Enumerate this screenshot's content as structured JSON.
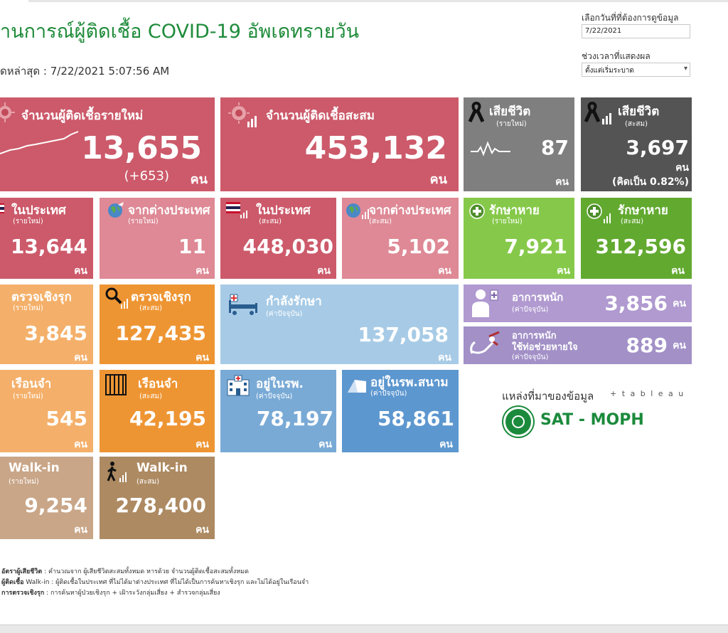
{
  "header": {
    "title": "านการณ์ผู้ติดเชื้อ COVID-19 อัพเดทรายวัน",
    "updated": "ดหล่าสุด : 7/22/2021 5:07:56 AM"
  },
  "controls": {
    "date_label": "เลือกวันที่ที่ต้องการดูข้อมูล",
    "date_value": "7/22/2021",
    "period_label": "ช่วงเวลาที่แสดงผล",
    "period_value": "ตั้งแต่เริ่มระบาด"
  },
  "tiles": {
    "new_cases": {
      "title": "จำนวนผู้ติดเชื้อรายใหม่",
      "value": "13,655",
      "delta": "(+653)",
      "unit": "คน"
    },
    "total_cases": {
      "title": "จำนวนผู้ติดเชื้อสะสม",
      "value": "453,132",
      "unit": "คน"
    },
    "deaths_new": {
      "title": "เสียชีวิต",
      "sub": "(รายใหม่)",
      "value": "87",
      "unit": "คน"
    },
    "deaths_total": {
      "title": "เสียชีวิต",
      "sub": "(สะสม)",
      "value": "3,697",
      "unit": "คน",
      "rate": "(คิดเป็น 0.82%)"
    },
    "domestic_new": {
      "title": "ในประเทศ",
      "sub": "(รายใหม่)",
      "value": "13,644",
      "unit": "คน"
    },
    "abroad_new": {
      "title": "จากต่างประเทศ",
      "sub": "(รายใหม่)",
      "value": "11",
      "unit": "คน"
    },
    "domestic_total": {
      "title": "ในประเทศ",
      "sub": "(สะสม)",
      "value": "448,030",
      "unit": "คน"
    },
    "abroad_total": {
      "title": "จากต่างประเทศ",
      "sub": "(สะสม)",
      "value": "5,102",
      "unit": "คน"
    },
    "recovered_new": {
      "title": "รักษาหาย",
      "sub": "(รายใหม่)",
      "value": "7,921",
      "unit": "คน"
    },
    "recovered_total": {
      "title": "รักษาหาย",
      "sub": "(สะสม)",
      "value": "312,596",
      "unit": "คน"
    },
    "active_test_new": {
      "title": "ตรวจเชิงรุก",
      "sub": "(รายใหม่)",
      "value": "3,845",
      "unit": "คน"
    },
    "active_test_total": {
      "title": "ตรวจเชิงรุก",
      "sub": "(สะสม)",
      "value": "127,435",
      "unit": "คน"
    },
    "treating": {
      "title": "กำลังรักษา",
      "sub": "(ค่าปัจจุบัน)",
      "value": "137,058",
      "unit": "คน"
    },
    "severe": {
      "title": "อาการหนัก",
      "sub": "(ค่าปัจจุบัน)",
      "value": "3,856",
      "unit": "คน"
    },
    "ventilator": {
      "title": "อาการหนัก",
      "title2": "ใช้ท่อช่วยหายใจ",
      "sub": "(ค่าปัจจุบัน)",
      "value": "889",
      "unit": "คน"
    },
    "prison_new": {
      "title": "เรือนจำ",
      "sub": "(รายใหม่)",
      "value": "545",
      "unit": "คน"
    },
    "prison_total": {
      "title": "เรือนจำ",
      "sub": "(สะสม)",
      "value": "42,195",
      "unit": "คน"
    },
    "hospital": {
      "title": "อยู่ในรพ.",
      "sub": "(ค่าปัจจุบัน)",
      "value": "78,197",
      "unit": "คน"
    },
    "field_hospital": {
      "title": "อยู่ในรพ.สนาม",
      "sub": "(ค่าปัจจุบัน)",
      "value": "58,861",
      "unit": "คน"
    },
    "walkin_new": {
      "title": "Walk-in",
      "sub": "(รายใหม่)",
      "value": "9,254",
      "unit": "คน"
    },
    "walkin_total": {
      "title": "Walk-in",
      "sub": "(สะสม)",
      "value": "278,400",
      "unit": "คน"
    }
  },
  "source": {
    "label": "แหล่งที่มาของข้อมูล",
    "tableau": "+ t a b l e a u",
    "org": "SAT - MOPH"
  },
  "notes": [
    {
      "bold": "อัตราผู้เสียชีวิต",
      "text": " : คำนวณจาก ผู้เสียชีวิตสะสมทั้งหมด หารด้วย จำนวนผู้ติดเชื้อสะสมทั้งหมด"
    },
    {
      "bold": "ผู้ติดเชื้อ",
      "text": " Walk-in : ผู้ติดเชื้อในประเทศ ที่ไม่ได้มาต่างประเทศ ที่ไม่ได้เป็นการค้นหาเชิงรุก และไม่ได้อยู่ในเรือนจำ"
    },
    {
      "bold": "การตรวจเชิงรุก",
      "text": " : การค้นหาผู้ป่วยเชิงรุก + เฝ้าระวังกลุ่มเสี่ยง + สำรวจกลุ่มเสี่ยง"
    }
  ],
  "icons": {
    "virus": "virus-icon",
    "ribbon": "black-ribbon-icon",
    "flag": "thai-flag-icon",
    "globe": "globe-icon",
    "plus": "medical-plus-icon",
    "search": "magnifier-icon",
    "bed": "hospital-bed-icon",
    "doctor": "doctor-icon",
    "ventilator": "ventilator-icon",
    "prison": "prison-bars-icon",
    "building": "hospital-building-icon",
    "tent": "tent-icon",
    "walker": "walking-person-icon"
  }
}
